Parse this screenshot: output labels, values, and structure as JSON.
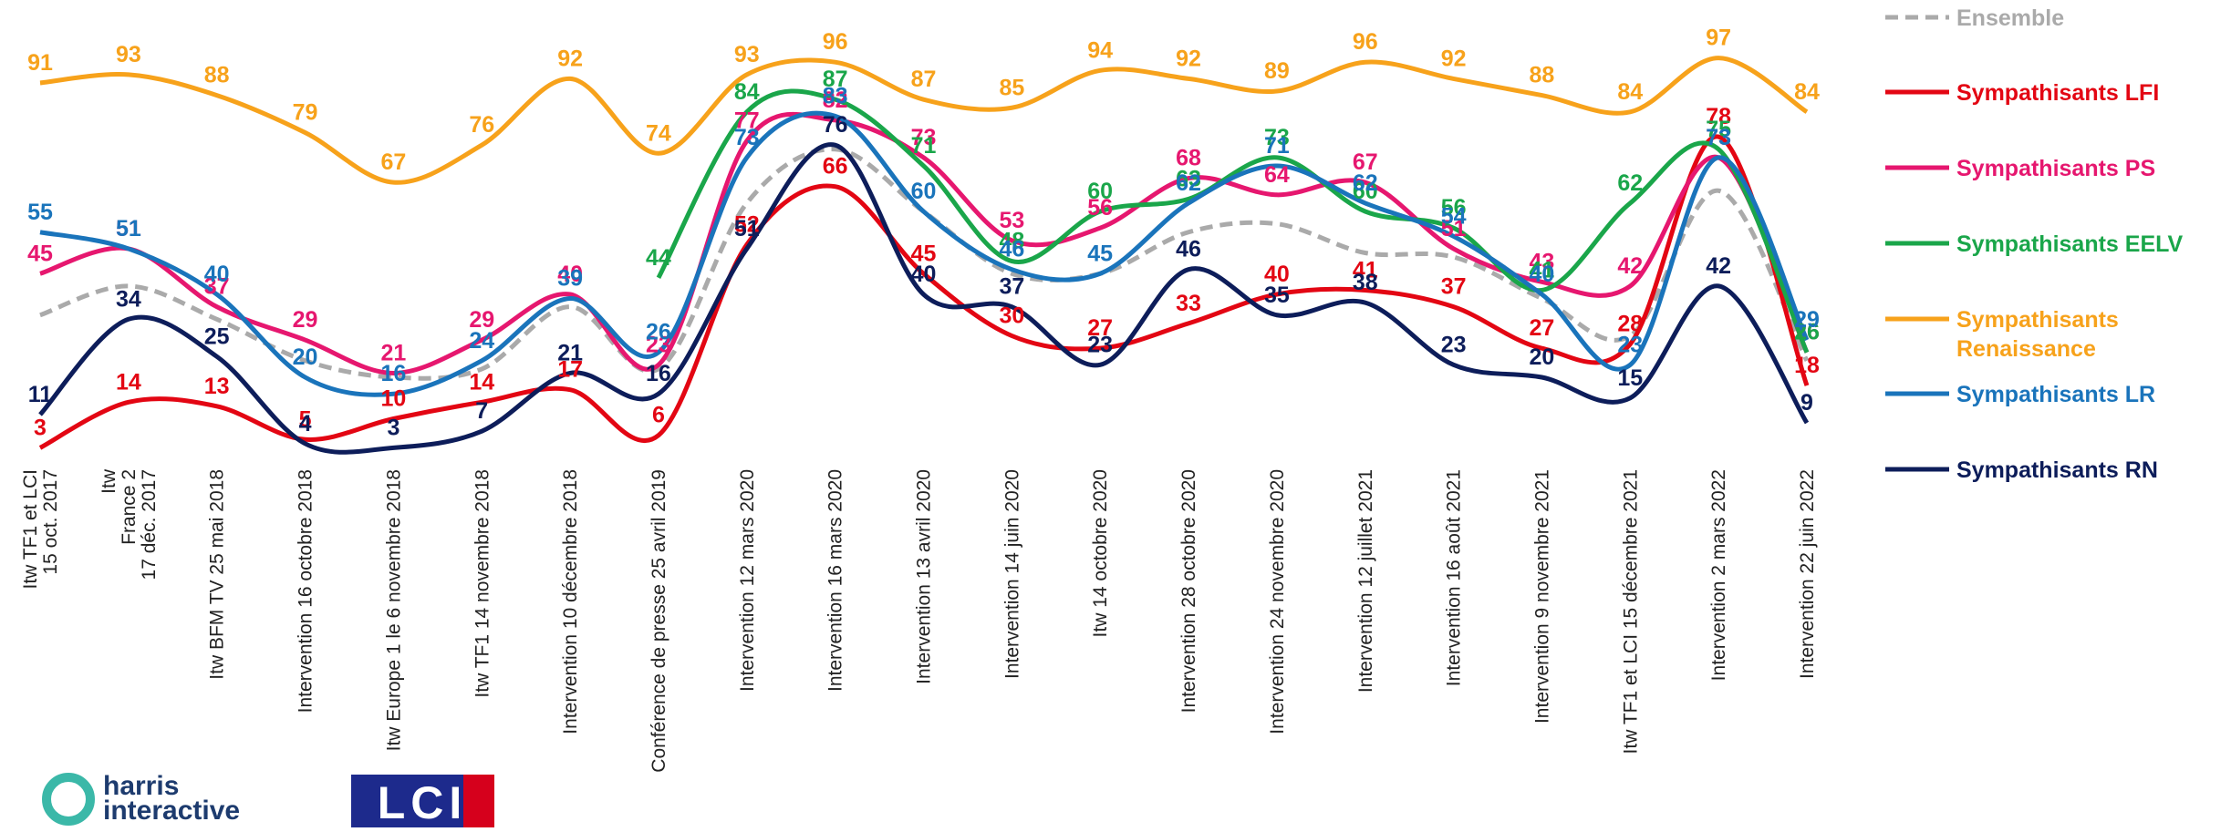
{
  "chart_data": {
    "type": "line",
    "categories": [
      "Itw TF1 et LCI\n15 oct. 2017",
      "Itw\nFrance 2\n17 déc. 2017",
      "Itw BFM TV 25 mai 2018",
      "Intervention 16 octobre 2018",
      "Itw Europe 1 le 6 novembre 2018",
      "Itw TF1 14 novembre 2018",
      "Intervention 10 décembre 2018",
      "Conférence de presse 25 avril 2019",
      "Intervention 12 mars 2020",
      "Intervention 16 mars 2020",
      "Intervention 13 avril 2020",
      "Intervention 14 juin 2020",
      "Itw 14 octobre 2020",
      "Intervention 28 octobre 2020",
      "Intervention 24 novembre 2020",
      "Intervention 12 juillet 2021",
      "Intervention 16 août 2021",
      "Intervention 9 novembre 2021",
      "Itw TF1 et LCI 15 décembre 2021",
      "Intervention 2 mars 2022",
      "Intervention 22 juin 2022"
    ],
    "ylim": [
      0,
      100
    ],
    "series": [
      {
        "name": "Ensemble",
        "color": "#aaaaaa",
        "dashed": true,
        "show_labels": false,
        "values": [
          35,
          42,
          34,
          24,
          20,
          22,
          37,
          22,
          62,
          75,
          60,
          45,
          45,
          55,
          57,
          50,
          49,
          39,
          30,
          65,
          24
        ]
      },
      {
        "name": "Sympathisants LFI",
        "color": "#e30613",
        "values": [
          3,
          14,
          13,
          5,
          10,
          14,
          17,
          6,
          52,
          66,
          45,
          30,
          27,
          33,
          40,
          41,
          37,
          27,
          28,
          78,
          18
        ]
      },
      {
        "name": "Sympathisants PS",
        "color": "#e6176f",
        "values": [
          45,
          51,
          37,
          29,
          21,
          29,
          40,
          23,
          77,
          82,
          73,
          53,
          56,
          68,
          64,
          67,
          51,
          43,
          42,
          73,
          26
        ]
      },
      {
        "name": "Sympathisants EELV",
        "color": "#1aa64a",
        "values": [
          null,
          null,
          null,
          null,
          null,
          null,
          null,
          44,
          84,
          87,
          71,
          48,
          60,
          63,
          73,
          60,
          56,
          41,
          62,
          75,
          26
        ]
      },
      {
        "name": "Sympathisants\nRenaissance",
        "color": "#f7a21b",
        "values": [
          91,
          93,
          88,
          79,
          67,
          76,
          92,
          74,
          93,
          96,
          87,
          85,
          94,
          92,
          89,
          96,
          92,
          88,
          84,
          97,
          84
        ]
      },
      {
        "name": "Sympathisants LR",
        "color": "#1a74bb",
        "values": [
          55,
          51,
          40,
          20,
          16,
          24,
          39,
          26,
          73,
          83,
          60,
          46,
          45,
          62,
          71,
          62,
          54,
          40,
          23,
          73,
          29
        ]
      },
      {
        "name": "Sympathisants RN",
        "color": "#0d1d5a",
        "values": [
          11,
          34,
          25,
          4,
          3,
          7,
          21,
          16,
          51,
          76,
          40,
          37,
          23,
          46,
          35,
          38,
          23,
          20,
          15,
          42,
          9
        ]
      }
    ]
  },
  "logos": {
    "harris": "harris\ninteractive",
    "lci": "LCI"
  }
}
